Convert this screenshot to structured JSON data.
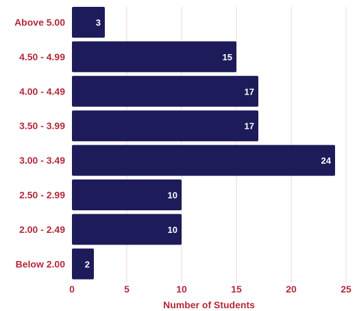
{
  "chart_data": {
    "type": "bar",
    "orientation": "horizontal",
    "title": "",
    "xlabel": "Number of Students",
    "ylabel": "",
    "categories": [
      "Above 5.00",
      "4.50 - 4.99",
      "4.00 - 4.49",
      "3.50 - 3.99",
      "3.00 - 3.49",
      "2.50 - 2.99",
      "2.00 - 2.49",
      "Below 2.00"
    ],
    "values": [
      3,
      15,
      17,
      17,
      24,
      10,
      10,
      2
    ],
    "xlim": [
      0,
      25
    ],
    "xticks": [
      0,
      5,
      10,
      15,
      20,
      25
    ],
    "xtick_labels": [
      "0",
      "5",
      "10",
      "15",
      "20",
      "25"
    ],
    "grid": "vertical",
    "data_labels": [
      "3",
      "15",
      "17",
      "17",
      "24",
      "10",
      "10",
      "2"
    ],
    "colors": {
      "bar": "#1d1b59",
      "label_text": "#b3283a",
      "grid": "#ecd6da",
      "value_text": "#ffffff"
    }
  }
}
